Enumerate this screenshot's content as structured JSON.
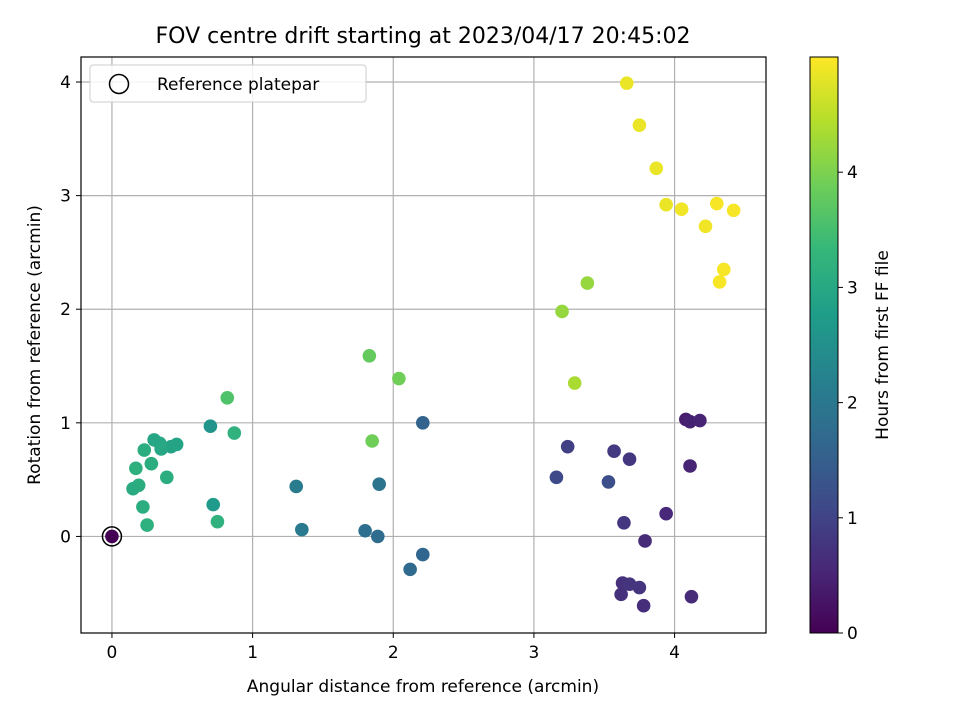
{
  "chart_data": {
    "type": "scatter",
    "title": "FOV centre drift starting at 2023/04/17 20:45:02",
    "xlabel": "Angular distance from reference (arcmin)",
    "ylabel": "Rotation from reference (arcmin)",
    "xlim": [
      -0.22,
      4.65
    ],
    "ylim": [
      -0.85,
      4.22
    ],
    "xticks": [
      0,
      1,
      2,
      3,
      4
    ],
    "yticks": [
      0,
      1,
      2,
      3,
      4
    ],
    "grid": true,
    "legend": {
      "placement": "top-left",
      "entries": [
        "Reference platepar"
      ]
    },
    "colorbar": {
      "label": "Hours from first FF file",
      "colormap": "viridis",
      "range": [
        0,
        5.0
      ],
      "ticks": [
        0,
        1,
        2,
        3,
        4
      ]
    },
    "reference": {
      "x": 0,
      "y": 0,
      "label": "Reference platepar"
    },
    "points": [
      {
        "x": 0.0,
        "y": 0.0,
        "c": 0.0
      },
      {
        "x": 4.08,
        "y": 1.03,
        "c": 0.4
      },
      {
        "x": 4.11,
        "y": 1.01,
        "c": 0.45
      },
      {
        "x": 4.18,
        "y": 1.02,
        "c": 0.5
      },
      {
        "x": 4.11,
        "y": 0.62,
        "c": 0.5
      },
      {
        "x": 3.94,
        "y": 0.2,
        "c": 0.55
      },
      {
        "x": 3.79,
        "y": -0.04,
        "c": 0.6
      },
      {
        "x": 4.12,
        "y": -0.53,
        "c": 0.6
      },
      {
        "x": 3.78,
        "y": -0.61,
        "c": 0.65
      },
      {
        "x": 3.62,
        "y": -0.51,
        "c": 0.7
      },
      {
        "x": 3.63,
        "y": -0.41,
        "c": 0.7
      },
      {
        "x": 3.68,
        "y": -0.42,
        "c": 0.75
      },
      {
        "x": 3.75,
        "y": -0.45,
        "c": 0.75
      },
      {
        "x": 3.64,
        "y": 0.12,
        "c": 0.8
      },
      {
        "x": 3.68,
        "y": 0.68,
        "c": 0.8
      },
      {
        "x": 3.57,
        "y": 0.75,
        "c": 0.85
      },
      {
        "x": 3.24,
        "y": 0.79,
        "c": 0.95
      },
      {
        "x": 3.16,
        "y": 0.52,
        "c": 1.1
      },
      {
        "x": 3.53,
        "y": 0.48,
        "c": 1.2
      },
      {
        "x": 2.21,
        "y": 1.0,
        "c": 1.6
      },
      {
        "x": 2.21,
        "y": -0.16,
        "c": 1.65
      },
      {
        "x": 2.12,
        "y": -0.29,
        "c": 1.7
      },
      {
        "x": 1.89,
        "y": 0.0,
        "c": 1.75
      },
      {
        "x": 1.8,
        "y": 0.05,
        "c": 1.8
      },
      {
        "x": 1.9,
        "y": 0.46,
        "c": 1.9
      },
      {
        "x": 1.35,
        "y": 0.06,
        "c": 2.05
      },
      {
        "x": 1.31,
        "y": 0.44,
        "c": 2.1
      },
      {
        "x": 0.7,
        "y": 0.97,
        "c": 2.6
      },
      {
        "x": 0.72,
        "y": 0.28,
        "c": 2.7
      },
      {
        "x": 0.75,
        "y": 0.13,
        "c": 3.2
      },
      {
        "x": 0.87,
        "y": 0.91,
        "c": 3.2
      },
      {
        "x": 0.82,
        "y": 1.22,
        "c": 3.6
      },
      {
        "x": 0.46,
        "y": 0.81,
        "c": 2.9
      },
      {
        "x": 0.42,
        "y": 0.79,
        "c": 2.9
      },
      {
        "x": 0.35,
        "y": 0.77,
        "c": 2.95
      },
      {
        "x": 0.34,
        "y": 0.82,
        "c": 3.0
      },
      {
        "x": 0.3,
        "y": 0.85,
        "c": 2.95
      },
      {
        "x": 0.23,
        "y": 0.76,
        "c": 3.1
      },
      {
        "x": 0.28,
        "y": 0.64,
        "c": 3.1
      },
      {
        "x": 0.17,
        "y": 0.6,
        "c": 3.15
      },
      {
        "x": 0.19,
        "y": 0.45,
        "c": 3.1
      },
      {
        "x": 0.15,
        "y": 0.42,
        "c": 3.05
      },
      {
        "x": 0.22,
        "y": 0.26,
        "c": 3.1
      },
      {
        "x": 0.25,
        "y": 0.1,
        "c": 3.15
      },
      {
        "x": 0.39,
        "y": 0.52,
        "c": 3.1
      },
      {
        "x": 1.85,
        "y": 0.84,
        "c": 3.9
      },
      {
        "x": 1.83,
        "y": 1.59,
        "c": 3.8
      },
      {
        "x": 2.04,
        "y": 1.39,
        "c": 3.9
      },
      {
        "x": 3.2,
        "y": 1.98,
        "c": 4.2
      },
      {
        "x": 3.29,
        "y": 1.35,
        "c": 4.35
      },
      {
        "x": 3.38,
        "y": 2.23,
        "c": 4.2
      },
      {
        "x": 3.66,
        "y": 3.99,
        "c": 4.85
      },
      {
        "x": 3.75,
        "y": 3.62,
        "c": 4.85
      },
      {
        "x": 3.87,
        "y": 3.24,
        "c": 4.85
      },
      {
        "x": 3.94,
        "y": 2.92,
        "c": 4.85
      },
      {
        "x": 4.05,
        "y": 2.88,
        "c": 4.9
      },
      {
        "x": 4.22,
        "y": 2.73,
        "c": 4.9
      },
      {
        "x": 4.3,
        "y": 2.93,
        "c": 4.95
      },
      {
        "x": 4.42,
        "y": 2.87,
        "c": 4.95
      },
      {
        "x": 4.35,
        "y": 2.35,
        "c": 4.95
      },
      {
        "x": 4.32,
        "y": 2.24,
        "c": 4.95
      }
    ]
  }
}
